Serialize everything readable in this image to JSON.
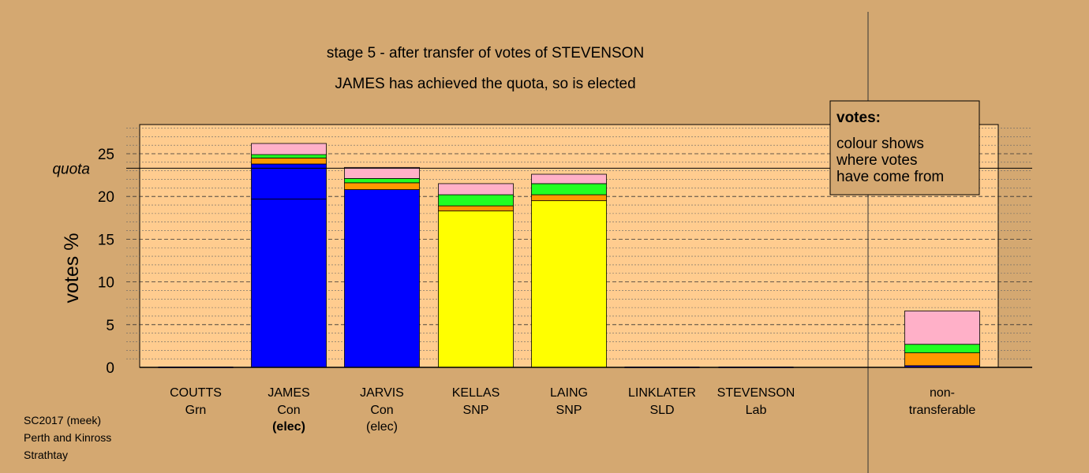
{
  "chart_data": {
    "type": "bar",
    "stacked": true,
    "title": "stage 5 - after transfer of votes of STEVENSON",
    "subtitle": "JAMES has achieved the quota, so is elected",
    "ylabel": "votes %",
    "quota_label": "quota",
    "quota_value": 23.3,
    "ylim": [
      0,
      28.5
    ],
    "yticks": [
      0,
      5,
      10,
      15,
      20,
      25
    ],
    "grid": true,
    "colors": {
      "blue": "#0000ff",
      "orange": "#ff9900",
      "green": "#22ff22",
      "pink": "#ffb0c8",
      "yellow": "#ffff00",
      "plot_bg": "#ffcc8f",
      "page_bg": "#d4a871"
    },
    "categories": [
      {
        "name": "COUTTS",
        "party": "Grn",
        "status": ""
      },
      {
        "name": "JAMES",
        "party": "Con",
        "status": "(elec)"
      },
      {
        "name": "JARVIS",
        "party": "Con",
        "status": "(elec)"
      },
      {
        "name": "KELLAS",
        "party": "SNP",
        "status": ""
      },
      {
        "name": "LAING",
        "party": "SNP",
        "status": ""
      },
      {
        "name": "LINKLATER",
        "party": "SLD",
        "status": ""
      },
      {
        "name": "STEVENSON",
        "party": "Lab",
        "status": ""
      },
      {
        "name": "non-",
        "party": "transferable",
        "status": ""
      }
    ],
    "bars": [
      [],
      [
        {
          "color": "blue",
          "value": 19.7
        },
        {
          "color": "blue",
          "value": 4.1
        },
        {
          "color": "orange",
          "value": 0.7
        },
        {
          "color": "green",
          "value": 0.4
        },
        {
          "color": "pink",
          "value": 1.3
        }
      ],
      [
        {
          "color": "blue",
          "value": 20.8
        },
        {
          "color": "orange",
          "value": 0.8
        },
        {
          "color": "green",
          "value": 0.5
        },
        {
          "color": "pink",
          "value": 1.3
        }
      ],
      [
        {
          "color": "yellow",
          "value": 18.3
        },
        {
          "color": "orange",
          "value": 0.6
        },
        {
          "color": "green",
          "value": 1.3
        },
        {
          "color": "pink",
          "value": 1.3
        }
      ],
      [
        {
          "color": "yellow",
          "value": 19.5
        },
        {
          "color": "orange",
          "value": 0.7
        },
        {
          "color": "green",
          "value": 1.3
        },
        {
          "color": "pink",
          "value": 1.1
        }
      ],
      [],
      [],
      [
        {
          "color": "blue",
          "value": 0.2
        },
        {
          "color": "orange",
          "value": 1.5
        },
        {
          "color": "green",
          "value": 1.0
        },
        {
          "color": "pink",
          "value": 3.9
        }
      ]
    ],
    "legend": {
      "title": "votes:",
      "lines": [
        "colour shows",
        "where votes",
        "have come from"
      ]
    }
  },
  "source": {
    "election": "SC2017 (meek)",
    "council": "Perth and Kinross",
    "ward": "Strathtay"
  }
}
